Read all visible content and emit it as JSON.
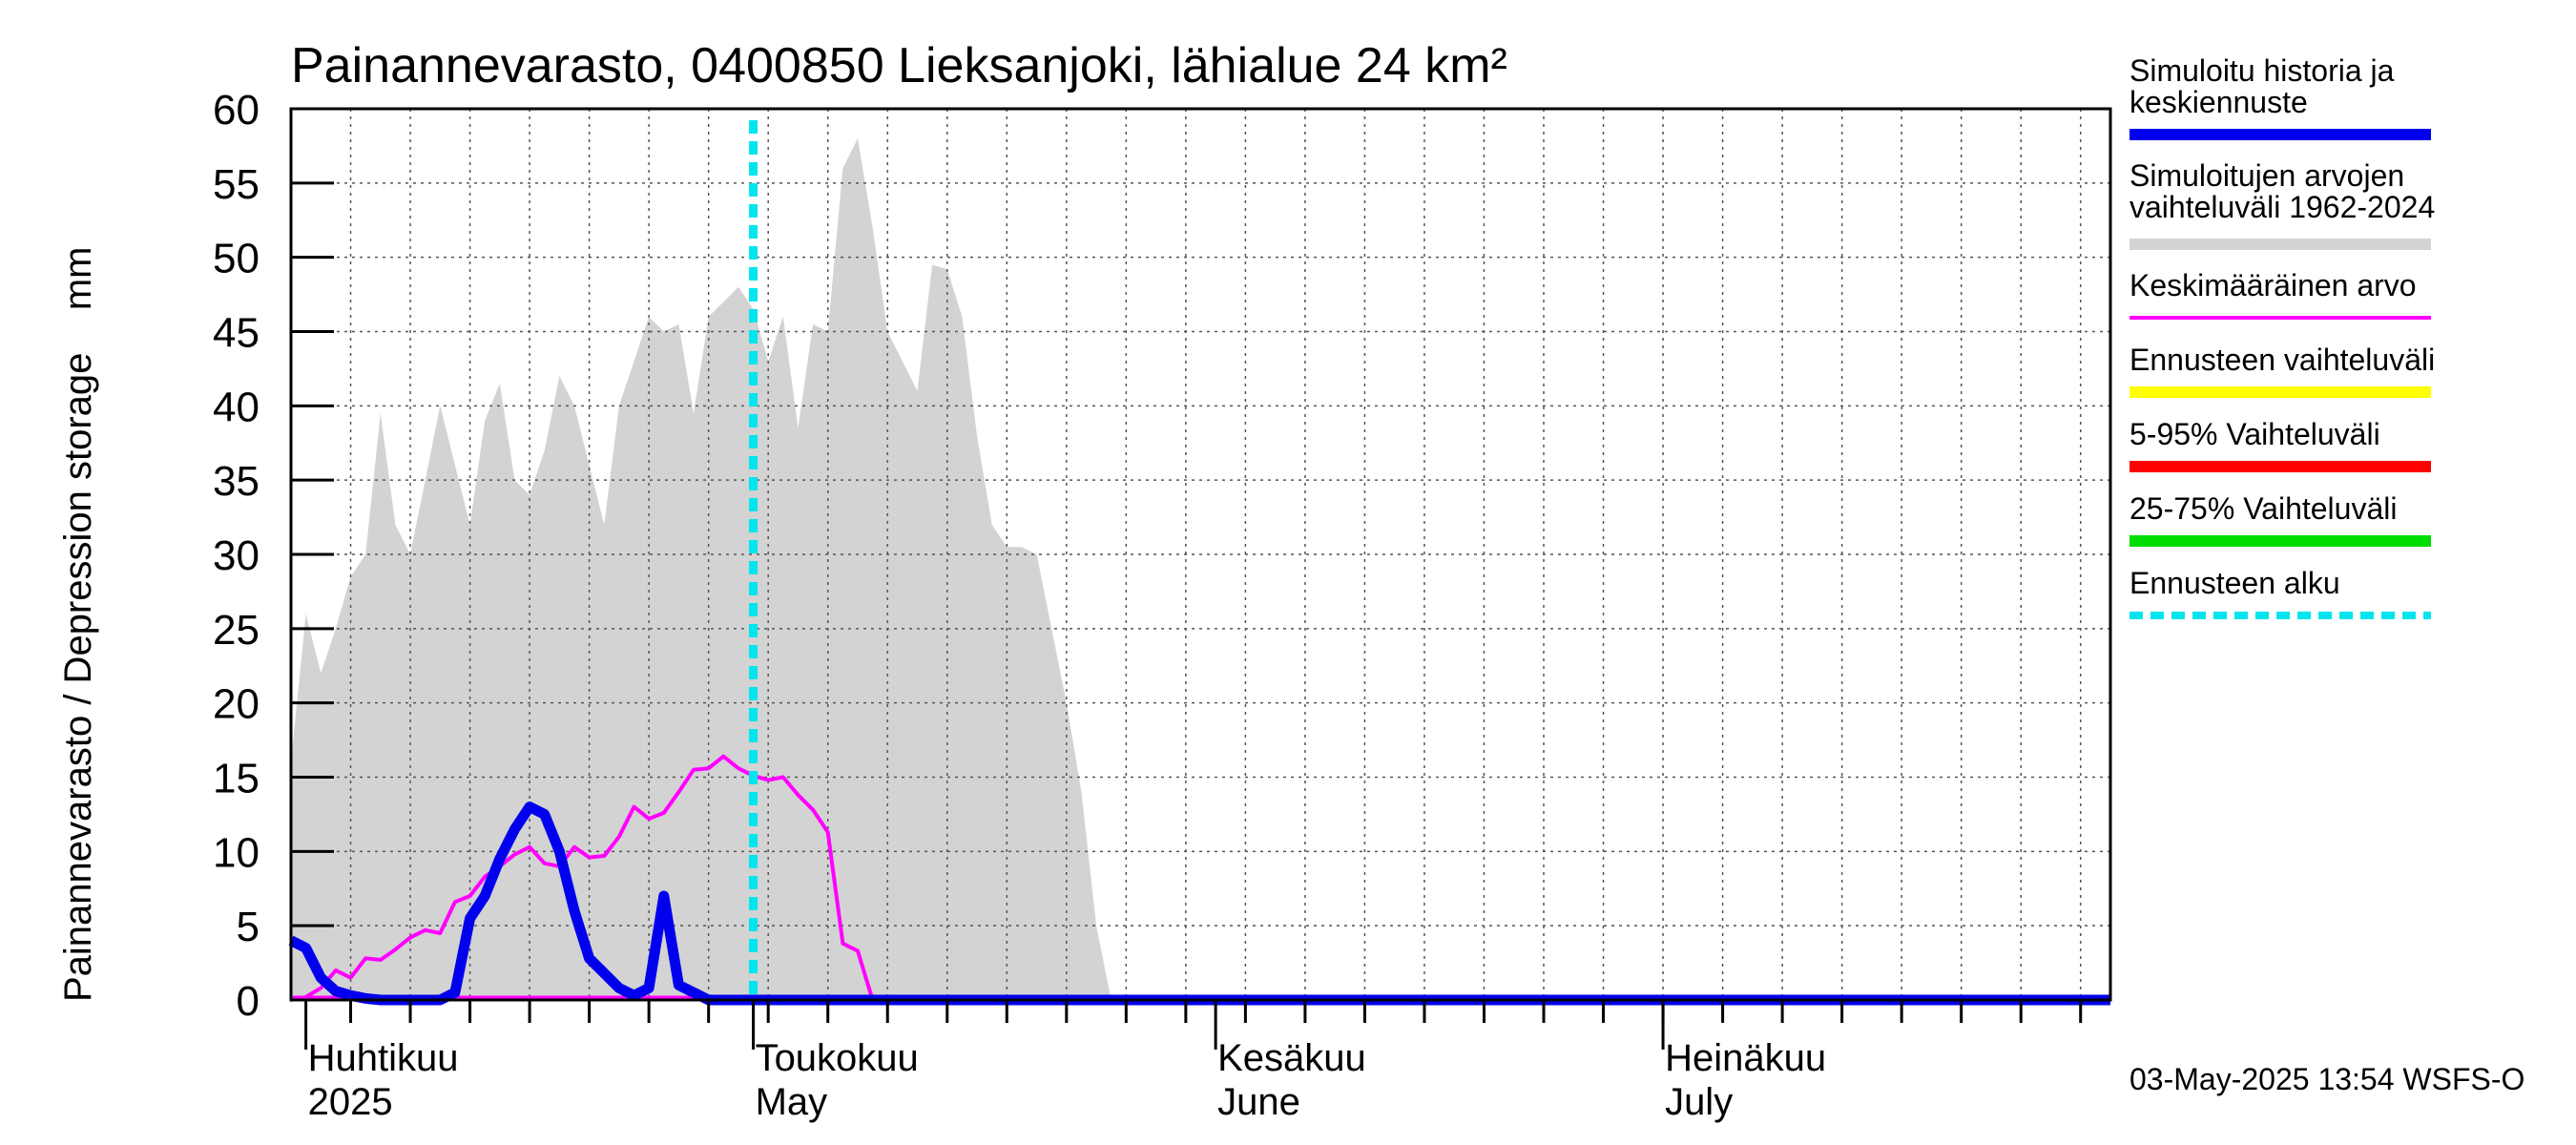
{
  "chart_data": {
    "type": "area",
    "title": "Painannevarasto, 0400850 Lieksanjoki, lähialue 24 km²",
    "ylabel": "Painannevarasto / Depression storage    mm",
    "xlabel": "",
    "ylim": [
      0,
      60
    ],
    "yticks": [
      "0",
      "5",
      "10",
      "15",
      "20",
      "25",
      "30",
      "35",
      "40",
      "45",
      "50",
      "55",
      "60"
    ],
    "x_unit": "day of year 2025",
    "xlim": [
      90,
      212
    ],
    "x_month_labels": [
      {
        "day": 91,
        "line1": "Huhtikuu",
        "line2": "2025"
      },
      {
        "day": 121,
        "line1": "Toukokuu",
        "line2": "May"
      },
      {
        "day": 152,
        "line1": "Kesäkuu",
        "line2": "June"
      },
      {
        "day": 182,
        "line1": "Heinäkuu",
        "line2": "July"
      }
    ],
    "grid": true,
    "forecast_start_day": 121,
    "series": [
      {
        "name": "Simuloitujen arvojen vaihteluväli 1962-2024",
        "kind": "band",
        "color": "#d3d3d3",
        "x": [
          90,
          91,
          92,
          93,
          94,
          95,
          96,
          97,
          98,
          99,
          100,
          101,
          102,
          103,
          104,
          105,
          106,
          107,
          108,
          109,
          110,
          111,
          112,
          113,
          114,
          115,
          116,
          117,
          118,
          119,
          120,
          121,
          122,
          123,
          124,
          125,
          126,
          127,
          128,
          129,
          130,
          131,
          132,
          133,
          134,
          135,
          136,
          137,
          138,
          139,
          140,
          141,
          142,
          143,
          144,
          145,
          146,
          147,
          148,
          212
        ],
        "upper": [
          16,
          26,
          22,
          25,
          28.5,
          30,
          39.5,
          32,
          30,
          35,
          40,
          36,
          32,
          39,
          41.5,
          35,
          34,
          37,
          42,
          40,
          36,
          32,
          40,
          43,
          46,
          45,
          45.5,
          39.5,
          46,
          47,
          48,
          46.5,
          43,
          46,
          38.5,
          45.5,
          45,
          56,
          58,
          52,
          45,
          43,
          41,
          49.5,
          49.2,
          46,
          38,
          32,
          30.5,
          30.5,
          30,
          25,
          20,
          14,
          5,
          0,
          0,
          0,
          0,
          0
        ],
        "lower": [
          0,
          0,
          0,
          0,
          0,
          0,
          0,
          0,
          0,
          0,
          0,
          0,
          0,
          0,
          0,
          0,
          0,
          0,
          0,
          0,
          0,
          0,
          0,
          0,
          0,
          0,
          0,
          0,
          0,
          0,
          0,
          0,
          0,
          0,
          0,
          0,
          0,
          0,
          0,
          0,
          0,
          0,
          0,
          0,
          0,
          0,
          0,
          0,
          0,
          0,
          0,
          0,
          0,
          0,
          0,
          0,
          0,
          0,
          0,
          0
        ]
      },
      {
        "name": "Keskimääräinen arvo",
        "kind": "line",
        "color": "#ff00ff",
        "x": [
          90,
          91,
          92,
          93,
          94,
          95,
          96,
          97,
          98,
          99,
          100,
          101,
          102,
          103,
          104,
          105,
          106,
          107,
          108,
          109,
          110,
          111,
          112,
          113,
          114,
          115,
          116,
          117,
          118,
          119,
          120,
          121,
          122,
          123,
          124,
          125,
          126,
          127,
          128,
          129,
          130,
          131,
          212
        ],
        "values": [
          0,
          0.2,
          0.8,
          2,
          1.5,
          2.8,
          2.7,
          3.4,
          4.2,
          4.7,
          4.5,
          6.6,
          7,
          8.3,
          9,
          9.8,
          10.3,
          9.2,
          9,
          10.3,
          9.6,
          9.7,
          11,
          13,
          12.2,
          12.6,
          14,
          15.5,
          15.6,
          16.4,
          15.6,
          15.1,
          14.8,
          15,
          13.8,
          12.8,
          11.3,
          3.8,
          3.3,
          0,
          0,
          0,
          0
        ]
      },
      {
        "name": "Simuloitu historia ja keskiennuste",
        "kind": "line",
        "color": "#0000ee",
        "x": [
          90,
          91,
          92,
          93,
          94,
          95,
          96,
          97,
          98,
          99,
          100,
          101,
          102,
          103,
          104,
          105,
          106,
          107,
          108,
          109,
          110,
          111,
          112,
          113,
          114,
          115,
          116,
          117,
          118,
          119,
          120,
          121,
          122,
          123,
          124,
          125,
          126,
          127,
          128,
          129,
          212
        ],
        "values": [
          4,
          3.5,
          1.5,
          0.6,
          0.3,
          0.1,
          0,
          0,
          0,
          0,
          0,
          0.5,
          5.5,
          7,
          9.5,
          11.5,
          13,
          12.5,
          10,
          6,
          2.8,
          1.8,
          0.8,
          0.3,
          0.8,
          7,
          1,
          0.5,
          0,
          0,
          0,
          0,
          0,
          0,
          0,
          0,
          0,
          0,
          0,
          0,
          0
        ]
      }
    ],
    "legend": [
      {
        "label": "Simuloitu historia ja keskiennuste",
        "color": "#0000ee",
        "style": "solid"
      },
      {
        "label": "Simuloitujen arvojen vaihteluväli 1962-2024",
        "color": "#d3d3d3",
        "style": "solid"
      },
      {
        "label": "Keskimääräinen arvo",
        "color": "#ff00ff",
        "style": "thin"
      },
      {
        "label": "Ennusteen vaihteluväli",
        "color": "#ffff00",
        "style": "solid"
      },
      {
        "label": "5-95% Vaihteluväli",
        "color": "#ff0000",
        "style": "solid"
      },
      {
        "label": "25-75% Vaihteluväli",
        "color": "#00dd00",
        "style": "solid"
      },
      {
        "label": "Ennusteen alku",
        "color": "#00e5ee",
        "style": "dashed"
      }
    ],
    "legend_position": "right"
  },
  "legend_text": {
    "l1a": "Simuloitu historia ja",
    "l1b": "keskiennuste",
    "l2a": "Simuloitujen arvojen",
    "l2b": "vaihteluväli 1962-2024",
    "l3": "Keskimääräinen arvo",
    "l4": "Ennusteen vaihteluväli",
    "l5": "5-95% Vaihteluväli",
    "l6": "25-75% Vaihteluväli",
    "l7": "Ennusteen alku"
  },
  "footer": "03-May-2025 13:54 WSFS-O"
}
